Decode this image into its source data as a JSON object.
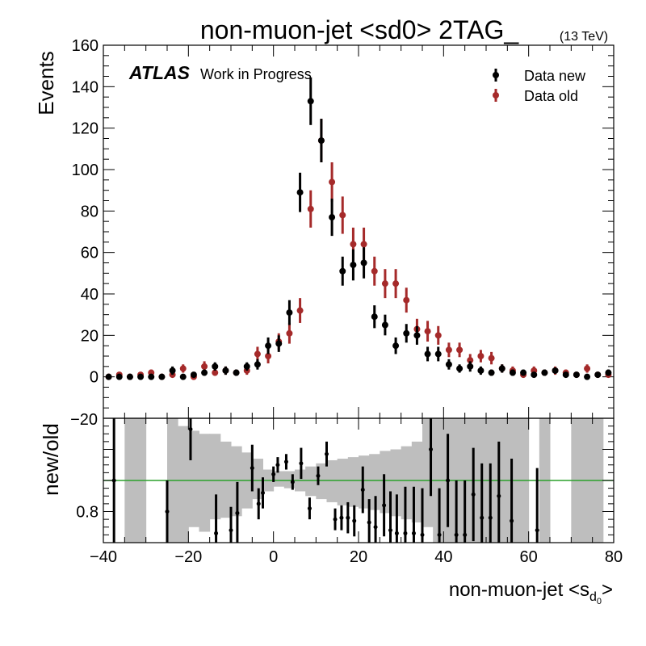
{
  "header": {
    "title": "non-muon-jet <sd0> 2TAG_",
    "energy": "(13 TeV)"
  },
  "atlas": {
    "label": "ATLAS",
    "sublabel": "Work in Progress"
  },
  "colors": {
    "data_new": "#000000",
    "data_old": "#a52a2a",
    "band": "#bebebe",
    "unity_line": "#2ca02c"
  },
  "chart_data": [
    {
      "type": "scatter",
      "ylabel": "Events",
      "xlim": [
        -40,
        80
      ],
      "ylim": [
        -20,
        160
      ],
      "y_ticks": [
        0,
        20,
        40,
        60,
        80,
        100,
        120,
        140,
        160
      ],
      "legend_placement": "top-right",
      "series": [
        {
          "name": "Data new",
          "x": [
            -40,
            -37.5,
            -35,
            -32.5,
            -30,
            -27.5,
            -25,
            -22.5,
            -20,
            -17.5,
            -15,
            -12.5,
            -10,
            -7.5,
            -5,
            -2.5,
            0,
            2.5,
            5,
            7.5,
            10,
            12.5,
            15,
            17.5,
            20,
            22.5,
            25,
            27.5,
            30,
            32.5,
            35,
            37.5,
            40,
            42.5,
            45,
            47.5,
            50,
            52.5,
            55,
            57.5,
            60,
            62.5,
            65,
            67.5,
            70,
            72.5,
            75,
            77.5
          ],
          "y": [
            0,
            0,
            0,
            0,
            0,
            0,
            3,
            0,
            1,
            2,
            5,
            3,
            2,
            5,
            6,
            15,
            16,
            31,
            89,
            133,
            114,
            77,
            51,
            54,
            55,
            29,
            25,
            15,
            21,
            20,
            11,
            11,
            6,
            4,
            5,
            3,
            2,
            4,
            2,
            2,
            1,
            2,
            3,
            1,
            1,
            0,
            1,
            2
          ],
          "y_err": [
            1,
            1,
            1,
            1,
            1,
            1,
            2,
            1,
            1,
            1.5,
            2,
            2,
            1.5,
            2,
            2.5,
            4,
            4,
            6,
            9.5,
            11.5,
            10.5,
            9,
            7,
            7.5,
            7.5,
            5.5,
            5,
            4,
            4.5,
            4.5,
            3.5,
            3.5,
            2.5,
            2,
            2.5,
            2,
            1.5,
            2,
            1.5,
            1.5,
            1,
            1.5,
            1.5,
            1,
            1,
            1,
            1,
            1.5
          ]
        },
        {
          "name": "Data old",
          "x": [
            -40,
            -37.5,
            -35,
            -32.5,
            -30,
            -27.5,
            -25,
            -22.5,
            -20,
            -17.5,
            -15,
            -12.5,
            -10,
            -7.5,
            -5,
            -2.5,
            0,
            2.5,
            5,
            7.5,
            10,
            12.5,
            15,
            17.5,
            20,
            22.5,
            25,
            27.5,
            30,
            32.5,
            35,
            37.5,
            40,
            42.5,
            45,
            47.5,
            50,
            52.5,
            55,
            57.5,
            60,
            62.5,
            65,
            67.5,
            70,
            72.5,
            75,
            77.5
          ],
          "y": [
            0,
            1,
            0,
            1,
            2,
            0,
            1,
            4,
            0,
            5,
            2,
            3,
            2,
            3,
            11,
            10,
            17,
            21,
            32,
            81,
            114,
            94,
            78,
            64,
            64,
            51,
            45,
            45,
            37,
            23,
            22,
            20,
            13,
            13,
            8,
            10,
            9,
            4,
            3,
            1,
            3,
            2,
            3,
            2,
            1,
            4,
            1,
            1
          ],
          "y_err": [
            1,
            1,
            1,
            1,
            1.5,
            1,
            1,
            2,
            1,
            2.5,
            1.5,
            2,
            1.5,
            2,
            3.5,
            3.5,
            4,
            5,
            6,
            9,
            10.5,
            9.5,
            9,
            8,
            8,
            7,
            7,
            7,
            6,
            5,
            5,
            4.5,
            3.5,
            3.5,
            3,
            3,
            3,
            2,
            2,
            1,
            2,
            1.5,
            2,
            1.5,
            1,
            2,
            1,
            1
          ]
        }
      ]
    },
    {
      "type": "scatter",
      "xlabel": "non-muon-jet <s",
      "xlabel_sub": "d",
      "xlabel_subsub": "0",
      "xlabel_end": ">",
      "ylabel": "new/old",
      "xlim": [
        -40,
        80
      ],
      "x_ticks": [
        -40,
        -20,
        0,
        20,
        40,
        60,
        80
      ],
      "ylim": [
        0.6,
        1.4
      ],
      "y_ticks": [
        0.8
      ],
      "top_tick_label": "−20",
      "reference_line": 1.0,
      "series": [
        {
          "name": "ratio",
          "x": [
            -37.5,
            -25,
            -19.5,
            -13.5,
            -10,
            -8.5,
            -5,
            -3.5,
            -2.5,
            0,
            1,
            3,
            4.5,
            6.5,
            8.5,
            10.5,
            12.5,
            14.5,
            16,
            17.5,
            19,
            21,
            22.5,
            24,
            26,
            27.5,
            29,
            31,
            33,
            35,
            37,
            39,
            41,
            43,
            45,
            47,
            49,
            51,
            53,
            56,
            62
          ],
          "y": [
            1.0,
            0.8,
            1.33,
            0.66,
            0.68,
            0.79,
            1.08,
            0.85,
            0.92,
            1.04,
            1.1,
            1.12,
            0.99,
            1.11,
            0.82,
            1.03,
            1.17,
            0.75,
            0.76,
            0.76,
            0.74,
            0.94,
            0.73,
            0.7,
            0.84,
            0.68,
            0.66,
            0.66,
            0.66,
            0.65,
            1.2,
            0.65,
            1.0,
            0.65,
            0.65,
            0.91,
            0.76,
            0.76,
            0.9,
            0.74,
            0.68
          ],
          "y_err": [
            0.4,
            0.2,
            0.2,
            0.25,
            0.15,
            0.2,
            0.15,
            0.1,
            0.1,
            0.05,
            0.05,
            0.05,
            0.05,
            0.1,
            0.07,
            0.06,
            0.08,
            0.07,
            0.08,
            0.1,
            0.1,
            0.15,
            0.15,
            0.2,
            0.2,
            0.25,
            0.25,
            0.3,
            0.3,
            0.3,
            0.3,
            0.3,
            0.3,
            0.35,
            0.35,
            0.3,
            0.35,
            0.35,
            0.35,
            0.4,
            0.4
          ]
        }
      ],
      "band": {
        "name": "uncertainty",
        "x": [
          -40,
          -37.5,
          -35,
          -32.5,
          -30,
          -27.5,
          -25,
          -22.5,
          -20,
          -17.5,
          -15,
          -12.5,
          -10,
          -7.5,
          -5,
          -2.5,
          0,
          2.5,
          5,
          7.5,
          10,
          12.5,
          15,
          17.5,
          20,
          22.5,
          25,
          27.5,
          30,
          32.5,
          35,
          37.5,
          40,
          42.5,
          45,
          47.5,
          50,
          52.5,
          55,
          57.5,
          60,
          62.5,
          65,
          67.5,
          70,
          72.5,
          75,
          77.5
        ],
        "low": [
          null,
          null,
          0.6,
          0.6,
          null,
          null,
          0.6,
          0.6,
          0.7,
          0.67,
          0.75,
          0.76,
          0.77,
          0.82,
          0.88,
          0.93,
          0.96,
          0.95,
          0.93,
          0.9,
          0.88,
          0.86,
          0.84,
          0.83,
          0.82,
          0.81,
          0.79,
          0.77,
          0.75,
          0.73,
          0.7,
          0.6,
          0.6,
          0.6,
          0.6,
          0.6,
          0.6,
          0.6,
          0.6,
          0.6,
          null,
          0.6,
          null,
          null,
          0.6,
          0.6,
          0.6,
          null
        ],
        "high": [
          null,
          null,
          1.4,
          1.4,
          null,
          null,
          1.4,
          1.35,
          1.32,
          1.3,
          1.3,
          1.25,
          1.22,
          1.18,
          1.14,
          1.07,
          1.06,
          1.06,
          1.07,
          1.09,
          1.11,
          1.13,
          1.14,
          1.15,
          1.16,
          1.17,
          1.19,
          1.2,
          1.22,
          1.25,
          1.4,
          1.4,
          1.4,
          1.4,
          1.4,
          1.4,
          1.4,
          1.4,
          1.4,
          1.4,
          null,
          1.4,
          null,
          null,
          1.4,
          1.4,
          1.4,
          null
        ]
      }
    }
  ]
}
